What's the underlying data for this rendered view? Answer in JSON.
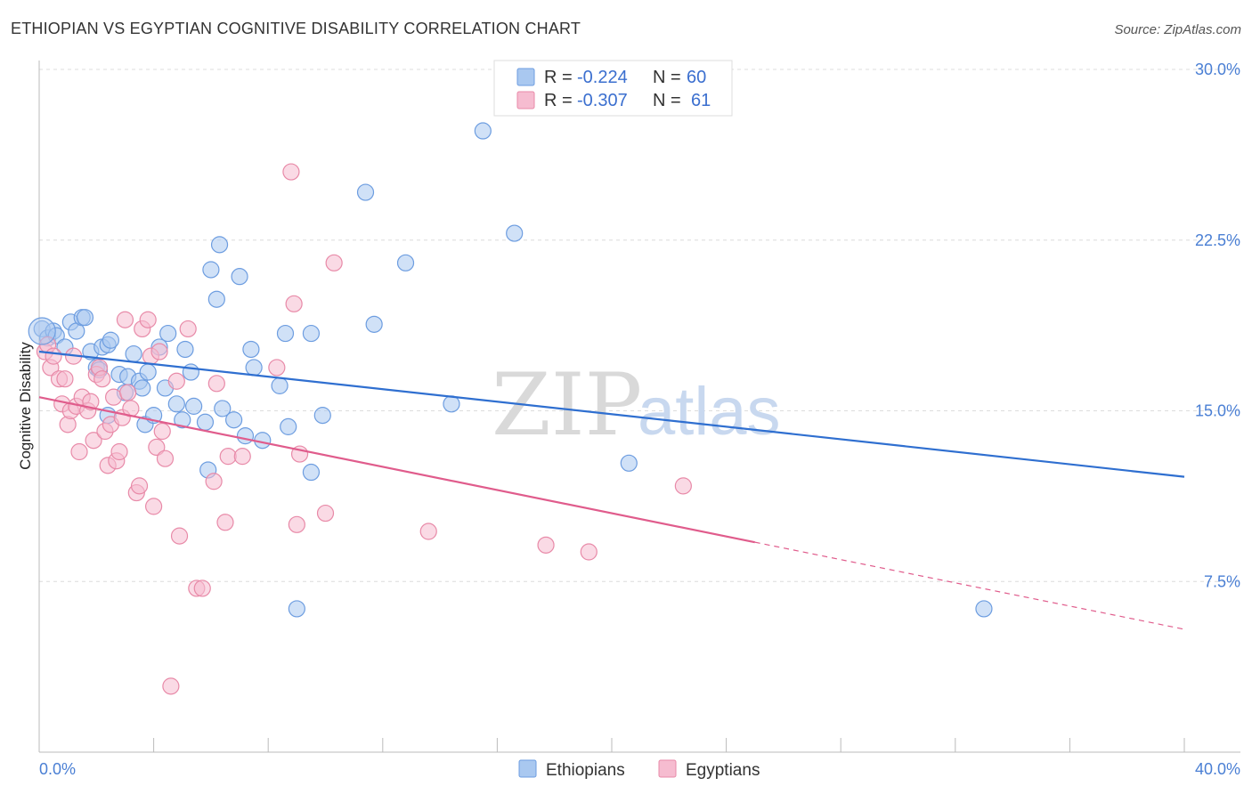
{
  "header": {
    "title": "ETHIOPIAN VS EGYPTIAN COGNITIVE DISABILITY CORRELATION CHART",
    "source": "Source: ZipAtlas.com"
  },
  "watermark": {
    "zip": "ZIP",
    "atlas": "atlas"
  },
  "legend": {
    "rows": [
      {
        "r_label": "R =",
        "r_value": "-0.224",
        "n_label": "N =",
        "n_value": "60",
        "color": "#a9c8f0",
        "stroke": "#6d9de0"
      },
      {
        "r_label": "R =",
        "r_value": "-0.307",
        "n_label": "N =",
        "n_value": "61",
        "color": "#f6bcd0",
        "stroke": "#e88aa8"
      }
    ]
  },
  "bottom_legend": {
    "items": [
      {
        "label": "Ethiopians",
        "color": "#a9c8f0",
        "stroke": "#6d9de0"
      },
      {
        "label": "Egyptians",
        "color": "#f6bcd0",
        "stroke": "#e88aa8"
      }
    ]
  },
  "chart_data": {
    "type": "scatter",
    "title": "ETHIOPIAN VS EGYPTIAN COGNITIVE DISABILITY CORRELATION CHART",
    "xlabel": "",
    "ylabel": "Cognitive Disability",
    "xlim": [
      0,
      40
    ],
    "ylim": [
      0,
      30
    ],
    "x_tick_labels": [
      "0.0%",
      "40.0%"
    ],
    "y_ticks": [
      7.5,
      15.0,
      22.5,
      30.0
    ],
    "y_tick_labels": [
      "7.5%",
      "15.0%",
      "22.5%",
      "30.0%"
    ],
    "grid": "horizontal dashed",
    "legend_placement": "top-center",
    "series": [
      {
        "name": "Ethiopians",
        "color": "#6d9de0",
        "fill": "#a9c8f0",
        "trend_color": "#2f6fd0",
        "r": -0.224,
        "n": 60,
        "trendline": {
          "x": [
            0,
            40
          ],
          "y": [
            17.6,
            12.1
          ],
          "dashed_from": null
        },
        "points": [
          [
            0.1,
            18.6
          ],
          [
            0.3,
            18.2
          ],
          [
            0.5,
            18.5
          ],
          [
            0.6,
            18.3
          ],
          [
            0.9,
            17.8
          ],
          [
            1.1,
            18.9
          ],
          [
            1.3,
            18.5
          ],
          [
            1.5,
            19.1
          ],
          [
            1.6,
            19.1
          ],
          [
            1.8,
            17.6
          ],
          [
            2.0,
            16.9
          ],
          [
            2.1,
            16.8
          ],
          [
            2.2,
            17.8
          ],
          [
            2.4,
            17.9
          ],
          [
            2.5,
            18.1
          ],
          [
            2.4,
            14.8
          ],
          [
            2.8,
            16.6
          ],
          [
            3.0,
            15.8
          ],
          [
            3.1,
            16.5
          ],
          [
            3.3,
            17.5
          ],
          [
            3.5,
            16.3
          ],
          [
            3.6,
            16.0
          ],
          [
            3.7,
            14.4
          ],
          [
            3.8,
            16.7
          ],
          [
            4.0,
            14.8
          ],
          [
            4.2,
            17.8
          ],
          [
            4.4,
            16.0
          ],
          [
            4.5,
            18.4
          ],
          [
            4.8,
            15.3
          ],
          [
            5.0,
            14.6
          ],
          [
            5.1,
            17.7
          ],
          [
            5.3,
            16.7
          ],
          [
            5.4,
            15.2
          ],
          [
            5.8,
            14.5
          ],
          [
            5.9,
            12.4
          ],
          [
            6.0,
            21.2
          ],
          [
            6.2,
            19.9
          ],
          [
            6.3,
            22.3
          ],
          [
            6.4,
            15.1
          ],
          [
            6.8,
            14.6
          ],
          [
            7.0,
            20.9
          ],
          [
            7.2,
            13.9
          ],
          [
            7.4,
            17.7
          ],
          [
            7.5,
            16.9
          ],
          [
            7.8,
            13.7
          ],
          [
            8.4,
            16.1
          ],
          [
            8.6,
            18.4
          ],
          [
            8.7,
            14.3
          ],
          [
            9.0,
            6.3
          ],
          [
            9.5,
            18.4
          ],
          [
            9.5,
            12.3
          ],
          [
            9.9,
            14.8
          ],
          [
            11.4,
            24.6
          ],
          [
            11.7,
            18.8
          ],
          [
            12.8,
            21.5
          ],
          [
            14.4,
            15.3
          ],
          [
            15.5,
            27.3
          ],
          [
            16.6,
            22.8
          ],
          [
            20.6,
            12.7
          ],
          [
            33.0,
            6.3
          ]
        ]
      },
      {
        "name": "Egyptians",
        "color": "#e88aa8",
        "fill": "#f6bcd0",
        "trend_color": "#e05c8c",
        "r": -0.307,
        "n": 61,
        "trendline": {
          "x": [
            0,
            40
          ],
          "y": [
            15.6,
            5.4
          ],
          "dashed_from": 25.0
        },
        "points": [
          [
            0.2,
            17.6
          ],
          [
            0.3,
            17.9
          ],
          [
            0.4,
            16.9
          ],
          [
            0.5,
            17.4
          ],
          [
            0.7,
            16.4
          ],
          [
            0.8,
            15.3
          ],
          [
            0.9,
            16.4
          ],
          [
            1.0,
            14.4
          ],
          [
            1.1,
            15.0
          ],
          [
            1.2,
            17.4
          ],
          [
            1.3,
            15.2
          ],
          [
            1.4,
            13.2
          ],
          [
            1.5,
            15.6
          ],
          [
            1.7,
            15.0
          ],
          [
            1.8,
            15.4
          ],
          [
            1.9,
            13.7
          ],
          [
            2.0,
            16.6
          ],
          [
            2.1,
            16.9
          ],
          [
            2.2,
            16.4
          ],
          [
            2.3,
            14.1
          ],
          [
            2.4,
            12.6
          ],
          [
            2.5,
            14.4
          ],
          [
            2.6,
            15.6
          ],
          [
            2.7,
            12.8
          ],
          [
            2.8,
            13.2
          ],
          [
            2.9,
            14.7
          ],
          [
            3.0,
            19.0
          ],
          [
            3.1,
            15.8
          ],
          [
            3.2,
            15.1
          ],
          [
            3.4,
            11.4
          ],
          [
            3.5,
            11.7
          ],
          [
            3.6,
            18.6
          ],
          [
            3.8,
            19.0
          ],
          [
            3.9,
            17.4
          ],
          [
            4.0,
            10.8
          ],
          [
            4.1,
            13.4
          ],
          [
            4.2,
            17.6
          ],
          [
            4.3,
            14.1
          ],
          [
            4.4,
            12.9
          ],
          [
            4.6,
            2.9
          ],
          [
            4.8,
            16.3
          ],
          [
            4.9,
            9.5
          ],
          [
            5.2,
            18.6
          ],
          [
            5.5,
            7.2
          ],
          [
            5.7,
            7.2
          ],
          [
            6.1,
            11.9
          ],
          [
            6.2,
            16.2
          ],
          [
            6.5,
            10.1
          ],
          [
            6.6,
            13.0
          ],
          [
            7.1,
            13.0
          ],
          [
            8.3,
            16.9
          ],
          [
            8.8,
            25.5
          ],
          [
            8.9,
            19.7
          ],
          [
            9.0,
            10.0
          ],
          [
            9.1,
            13.1
          ],
          [
            10.0,
            10.5
          ],
          [
            10.3,
            21.5
          ],
          [
            13.6,
            9.7
          ],
          [
            17.7,
            9.1
          ],
          [
            19.2,
            8.8
          ],
          [
            22.5,
            11.7
          ]
        ]
      }
    ]
  }
}
